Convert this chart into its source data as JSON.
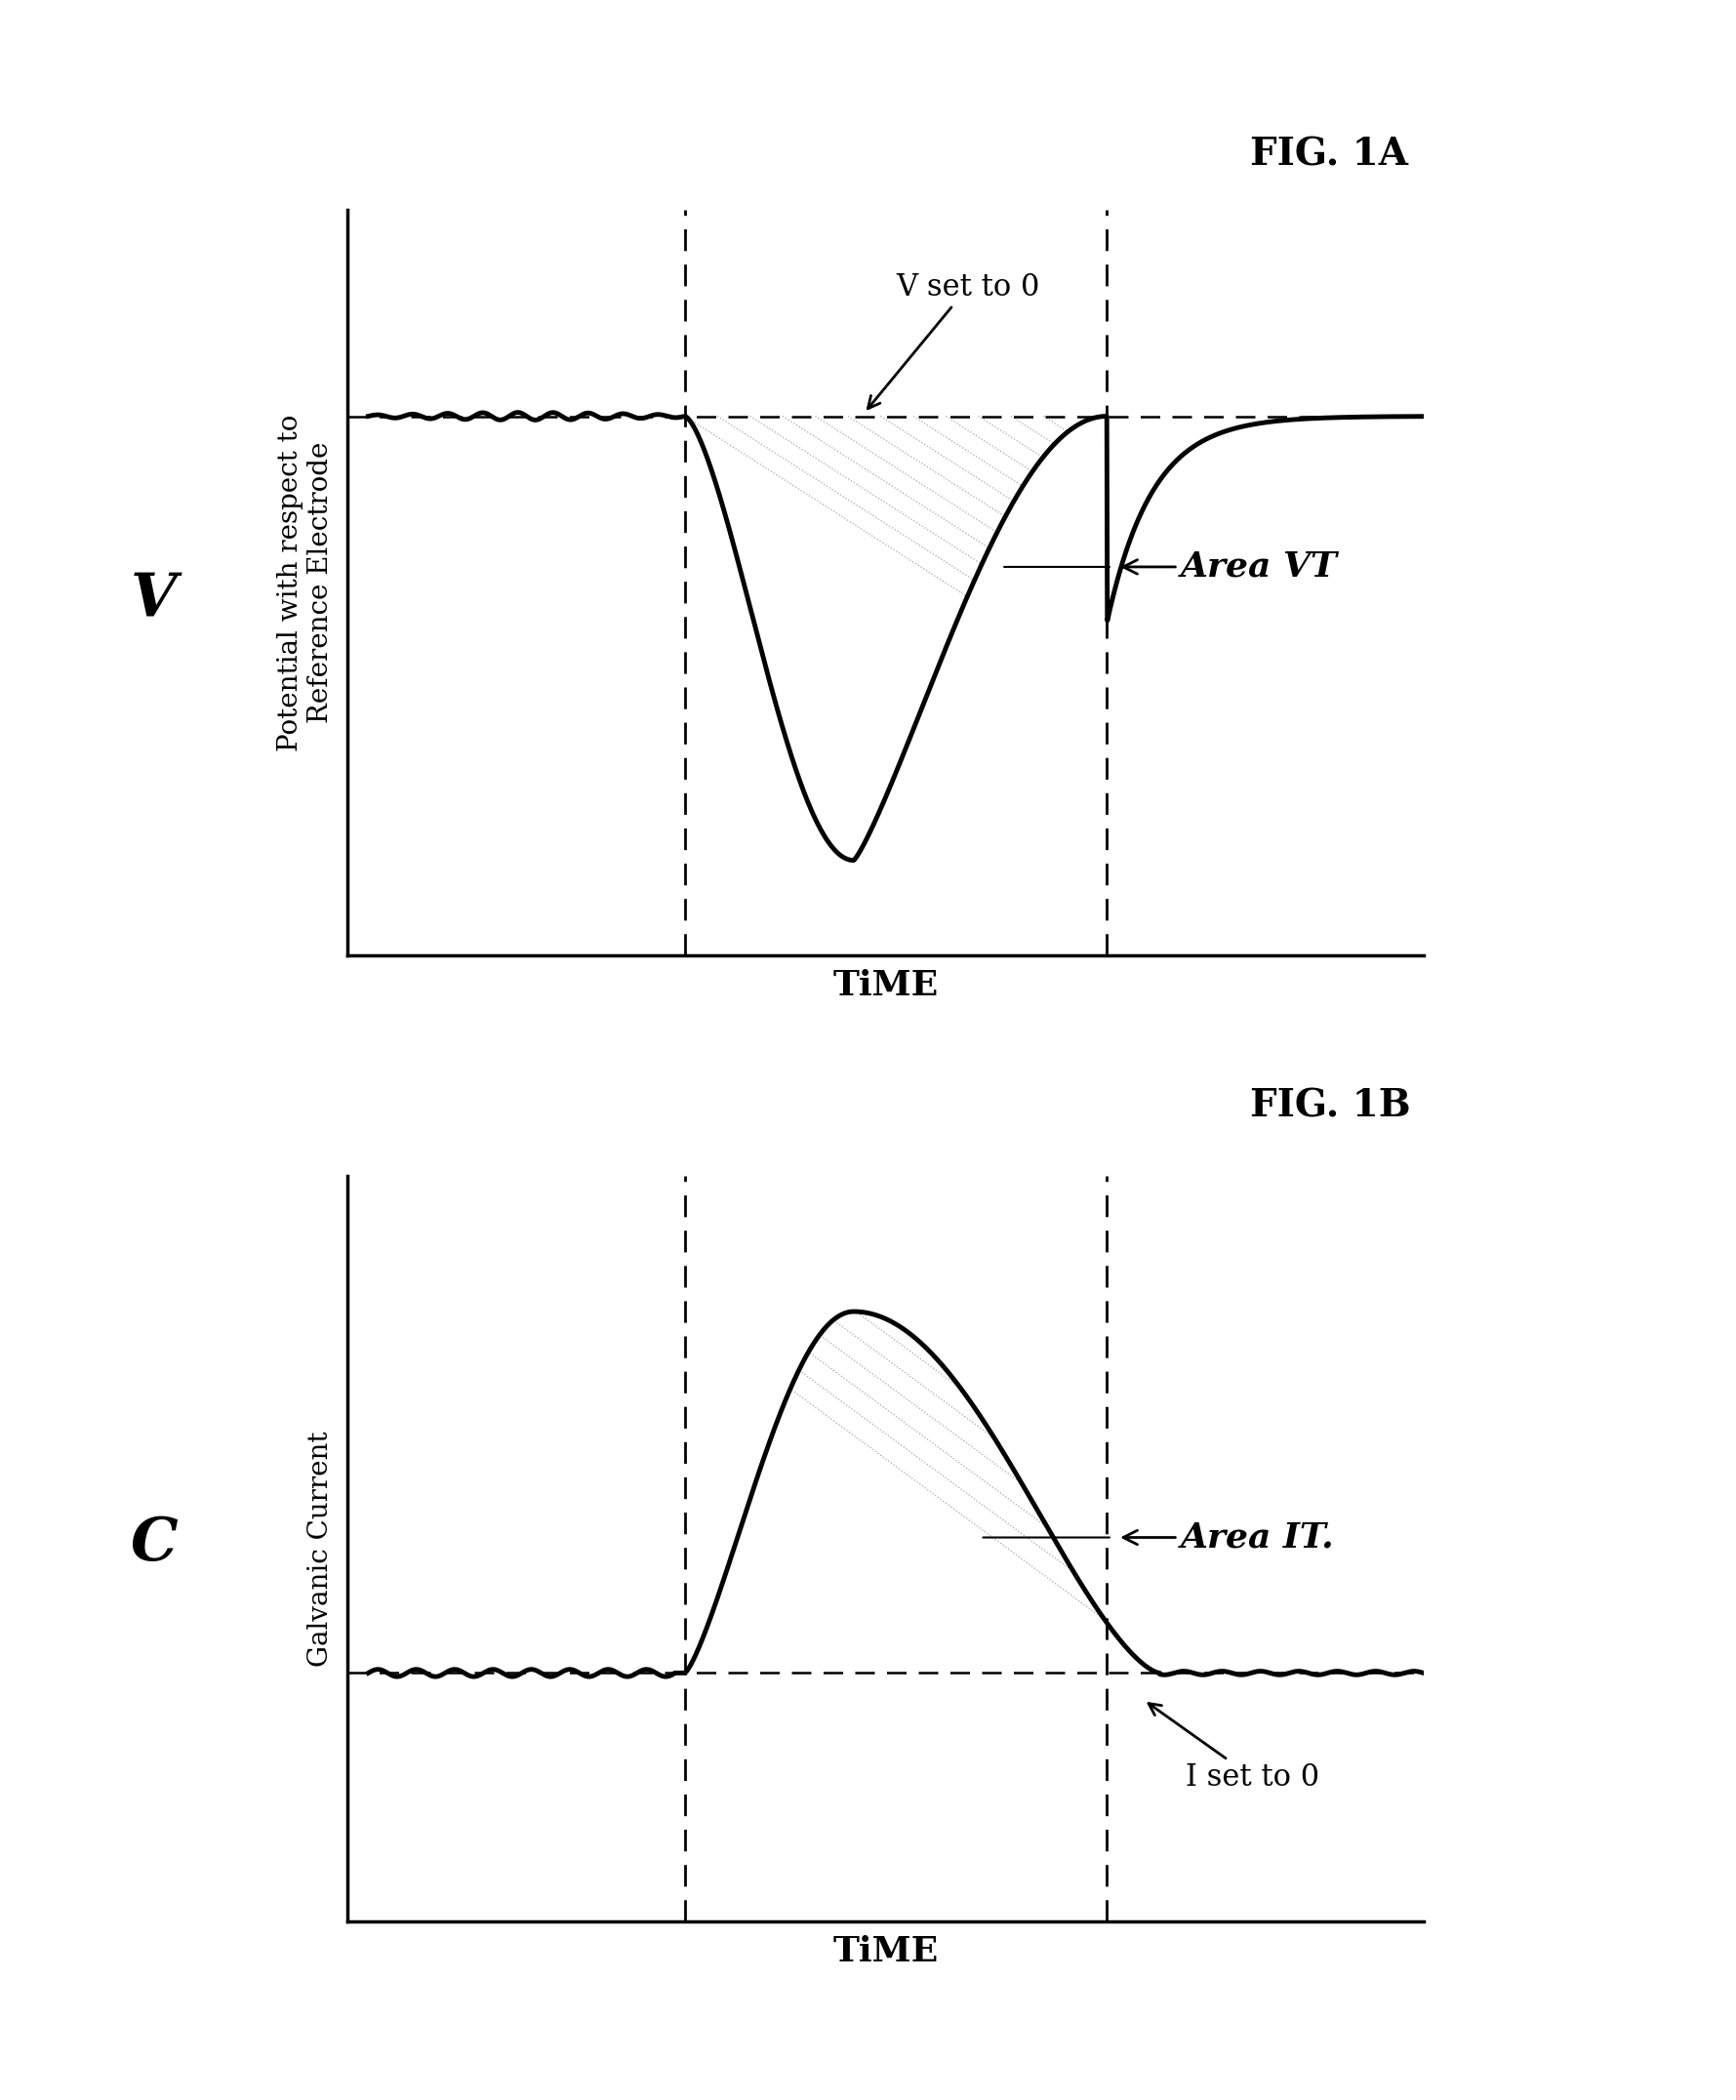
{
  "fig1a_title": "FIG. 1A",
  "fig1b_title": "FIG. 1B",
  "ylabel_top": "Potential with respect to\nReference Electrode",
  "ylabel_bottom": "Galvanic Current",
  "xlabel_top": "TiME",
  "xlabel_bottom": "TiME",
  "v_label": "V",
  "c_label": "C",
  "area_vt_label": "Area VT",
  "area_it_label": "Area IT.",
  "v_set_label": "V set to 0",
  "i_set_label": "I set to 0",
  "t1": 0.3,
  "t2": 0.7,
  "baseline_v": 0.65,
  "v_min": -0.75,
  "background": "#ffffff"
}
